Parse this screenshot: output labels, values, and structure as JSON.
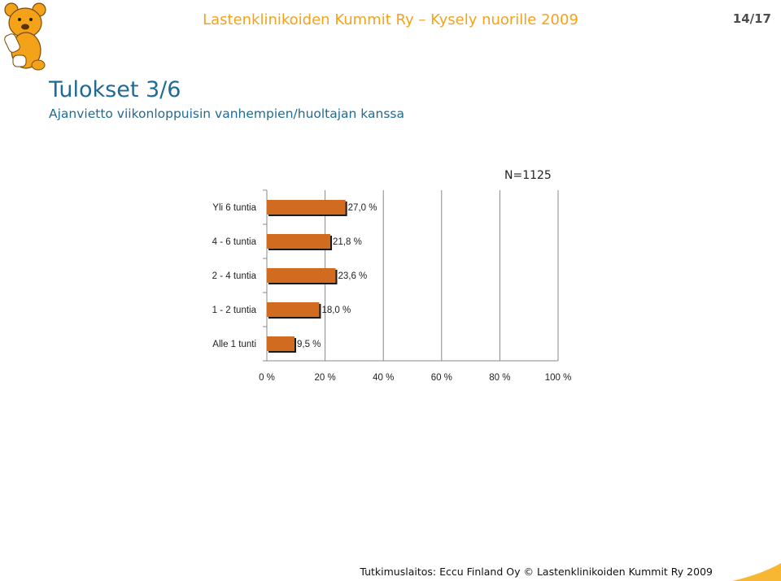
{
  "header": {
    "title": "Lastenklinikoiden Kummit Ry – Kysely nuorille 2009",
    "page_number": "14/17"
  },
  "slide": {
    "title": "Tulokset 3/6",
    "subtitle": "Ajanvietto viikonloppuisin vanhempien/huoltajan kanssa",
    "n_label": "N=1125"
  },
  "footer": {
    "text": "Tutkimuslaitos: Eccu Finland Oy © Lastenklinikoiden Kummit Ry 2009"
  },
  "colors": {
    "accent": "#f4a21a",
    "title": "#1f6b96",
    "bar": "#d06b1f",
    "bar_shadow": "#1a1a1a",
    "corner": "#f7b733"
  },
  "chart_data": {
    "type": "bar",
    "orientation": "horizontal",
    "categories": [
      "Yli 6 tuntia",
      "4 - 6 tuntia",
      "2 - 4 tuntia",
      "1 - 2 tuntia",
      "Alle 1 tunti"
    ],
    "values": [
      27.0,
      21.8,
      23.6,
      18.0,
      9.5
    ],
    "value_labels": [
      "27,0 %",
      "21,8 %",
      "23,6 %",
      "18,0 %",
      "9,5 %"
    ],
    "xlim": [
      0,
      100
    ],
    "x_ticks": [
      0,
      20,
      40,
      60,
      80,
      100
    ],
    "x_tick_labels": [
      "0 %",
      "20 %",
      "40 %",
      "60 %",
      "80 %",
      "100 %"
    ],
    "grid": true
  }
}
